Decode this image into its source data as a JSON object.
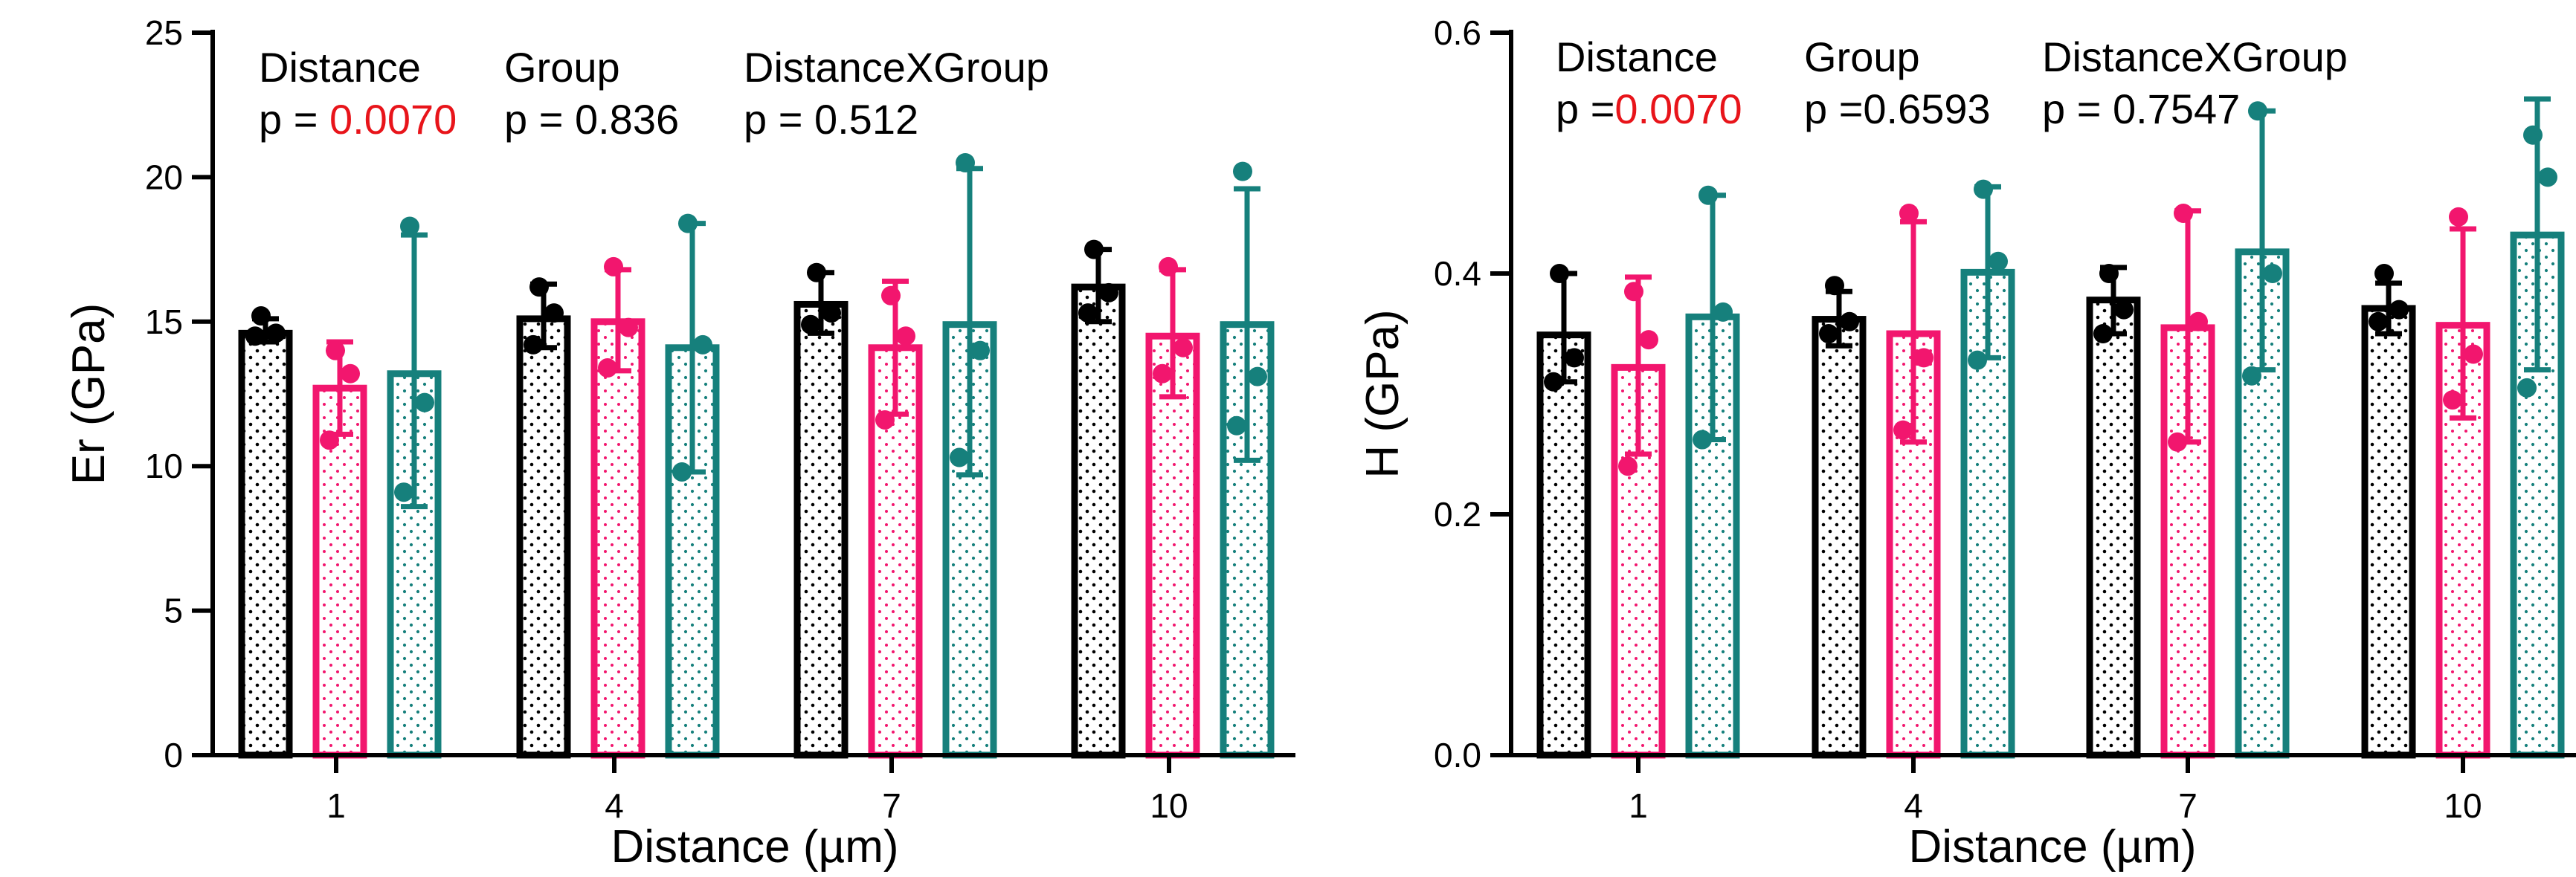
{
  "colors": {
    "black": "#000000",
    "pink": "#f2166e",
    "teal": "#16807c",
    "red": "#e8141a"
  },
  "chart_data": [
    {
      "type": "bar",
      "title": "",
      "xlabel": "Distance (µm)",
      "ylabel": "Er (GPa)",
      "categories": [
        "1",
        "4",
        "7",
        "10"
      ],
      "ylim": [
        0,
        25
      ],
      "yticks": [
        "0",
        "5",
        "10",
        "15",
        "20",
        "25"
      ],
      "grid": false,
      "legend": "none",
      "stats": [
        {
          "label": "Distance",
          "p_prefix": "p = ",
          "p_value": "0.0070",
          "highlight": true
        },
        {
          "label": "Group",
          "p_prefix": "p = ",
          "p_value": "0.836",
          "highlight": false
        },
        {
          "label": "DistanceXGroup",
          "p_prefix": "p = ",
          "p_value": "0.512",
          "highlight": false
        }
      ],
      "series": [
        {
          "color": "#000000",
          "pattern": "dots",
          "values": [
            14.6,
            15.1,
            15.6,
            16.2
          ],
          "err_upper": [
            15.1,
            16.3,
            16.7,
            17.5
          ],
          "err_lower": [
            14.3,
            14.1,
            14.6,
            15.0
          ],
          "points": [
            [
              15.2,
              14.6,
              14.5
            ],
            [
              16.2,
              15.3,
              14.2
            ],
            [
              16.7,
              15.3,
              14.9
            ],
            [
              17.5,
              16.0,
              15.3
            ]
          ]
        },
        {
          "color": "#f2166e",
          "pattern": "dots",
          "values": [
            12.7,
            15.0,
            14.1,
            14.5
          ],
          "err_upper": [
            14.3,
            16.8,
            16.4,
            16.8
          ],
          "err_lower": [
            11.1,
            13.3,
            11.8,
            12.4
          ],
          "points": [
            [
              14.0,
              13.2,
              10.9
            ],
            [
              16.9,
              14.8,
              13.4
            ],
            [
              15.9,
              14.5,
              11.6
            ],
            [
              16.9,
              14.1,
              13.2
            ]
          ]
        },
        {
          "color": "#16807c",
          "pattern": "dots",
          "values": [
            13.2,
            14.1,
            14.9,
            14.9
          ],
          "err_upper": [
            18.0,
            18.4,
            20.3,
            19.6
          ],
          "err_lower": [
            8.6,
            9.8,
            9.7,
            10.2
          ],
          "points": [
            [
              18.3,
              12.2,
              9.1
            ],
            [
              18.4,
              14.2,
              9.8
            ],
            [
              20.5,
              14.0,
              10.3
            ],
            [
              20.2,
              13.1,
              11.4
            ]
          ]
        }
      ]
    },
    {
      "type": "bar",
      "title": "",
      "xlabel": "Distance (µm)",
      "ylabel": "H (GPa)",
      "categories": [
        "1",
        "4",
        "7",
        "10"
      ],
      "ylim": [
        0,
        0.6
      ],
      "yticks": [
        "0.0",
        "0.2",
        "0.4",
        "0.6"
      ],
      "grid": false,
      "legend": "none",
      "stats": [
        {
          "label": "Distance",
          "p_prefix": "p =",
          "p_value": "0.0070",
          "highlight": true
        },
        {
          "label": "Group",
          "p_prefix": "p =",
          "p_value": "0.6593",
          "highlight": false
        },
        {
          "label": "DistanceXGroup",
          "p_prefix": "p = ",
          "p_value": "0.7547",
          "highlight": false
        }
      ],
      "series": [
        {
          "color": "#000000",
          "pattern": "dots",
          "values": [
            0.349,
            0.362,
            0.378,
            0.371
          ],
          "err_upper": [
            0.4,
            0.385,
            0.405,
            0.392
          ],
          "err_lower": [
            0.31,
            0.34,
            0.35,
            0.35
          ],
          "points": [
            [
              0.4,
              0.33,
              0.31
            ],
            [
              0.39,
              0.36,
              0.35
            ],
            [
              0.4,
              0.37,
              0.35
            ],
            [
              0.4,
              0.37,
              0.36
            ]
          ]
        },
        {
          "color": "#f2166e",
          "pattern": "dots",
          "values": [
            0.322,
            0.35,
            0.355,
            0.357
          ],
          "err_upper": [
            0.397,
            0.443,
            0.452,
            0.437
          ],
          "err_lower": [
            0.25,
            0.26,
            0.26,
            0.28
          ],
          "points": [
            [
              0.385,
              0.345,
              0.24
            ],
            [
              0.45,
              0.33,
              0.27
            ],
            [
              0.45,
              0.36,
              0.26
            ],
            [
              0.447,
              0.333,
              0.295
            ]
          ]
        },
        {
          "color": "#16807c",
          "pattern": "dots",
          "values": [
            0.364,
            0.401,
            0.418,
            0.432
          ],
          "err_upper": [
            0.465,
            0.472,
            0.535,
            0.545
          ],
          "err_lower": [
            0.262,
            0.33,
            0.32,
            0.32
          ],
          "points": [
            [
              0.465,
              0.368,
              0.262
            ],
            [
              0.47,
              0.41,
              0.328
            ],
            [
              0.535,
              0.4,
              0.315
            ],
            [
              0.515,
              0.48,
              0.305
            ]
          ]
        }
      ]
    }
  ]
}
